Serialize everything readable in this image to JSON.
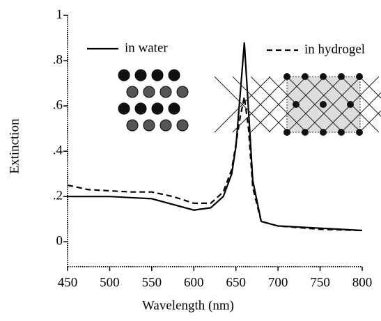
{
  "chart_data": {
    "type": "line",
    "x_label": "Wavelength (nm)",
    "y_label": "Extinction",
    "x": [
      450,
      475,
      500,
      525,
      550,
      575,
      600,
      620,
      635,
      645,
      650,
      655,
      660,
      665,
      670,
      680,
      700,
      750,
      800
    ],
    "series": [
      {
        "name": "in water",
        "color": "#000000",
        "dashed": false,
        "values": [
          0.2,
          0.2,
          0.2,
          0.195,
          0.19,
          0.165,
          0.14,
          0.15,
          0.2,
          0.3,
          0.42,
          0.65,
          0.88,
          0.58,
          0.27,
          0.09,
          0.07,
          0.06,
          0.05
        ]
      },
      {
        "name": "in hydrogel",
        "color": "#000000",
        "dashed": true,
        "values": [
          0.25,
          0.23,
          0.225,
          0.22,
          0.22,
          0.2,
          0.17,
          0.17,
          0.22,
          0.32,
          0.43,
          0.55,
          0.64,
          0.5,
          0.24,
          0.09,
          0.07,
          0.055,
          0.05
        ]
      }
    ],
    "xlim": [
      450,
      800
    ],
    "xticks": [
      450,
      500,
      550,
      600,
      650,
      700,
      750,
      800
    ],
    "ylim": [
      -0.11,
      1
    ],
    "yticks": [
      0,
      {
        "value": 0.2,
        "label": ".2"
      },
      {
        "value": 0.4,
        "label": ".4"
      },
      {
        "value": 0.6,
        "label": ".6"
      },
      {
        "value": 0.8,
        "label": ".8"
      },
      1
    ]
  }
}
